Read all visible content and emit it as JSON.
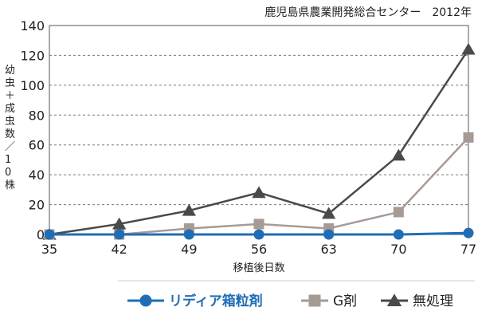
{
  "chart_data": {
    "type": "line",
    "source_note": "鹿児島県農業開発総合センター　2012年",
    "xlabel": "移植後日数",
    "ylabel": "幼虫＋成虫数／10株",
    "x": [
      35,
      42,
      49,
      56,
      63,
      70,
      77
    ],
    "ylim": [
      0,
      140
    ],
    "yticks": [
      0,
      20,
      40,
      60,
      80,
      100,
      120,
      140
    ],
    "grid": "horizontal-dashed",
    "legend_position": "bottom",
    "series": [
      {
        "name": "リディア箱粒剤",
        "values": [
          0,
          0,
          0,
          0,
          0,
          0,
          1
        ],
        "color": "#1f6db5",
        "marker": "circle"
      },
      {
        "name": "G剤",
        "values": [
          0,
          0,
          4,
          7,
          4,
          15,
          65
        ],
        "color": "#a69a95",
        "marker": "square"
      },
      {
        "name": "無処理",
        "values": [
          0,
          7,
          16,
          28,
          14,
          53,
          124
        ],
        "color": "#4a4a4a",
        "marker": "triangle"
      }
    ]
  }
}
